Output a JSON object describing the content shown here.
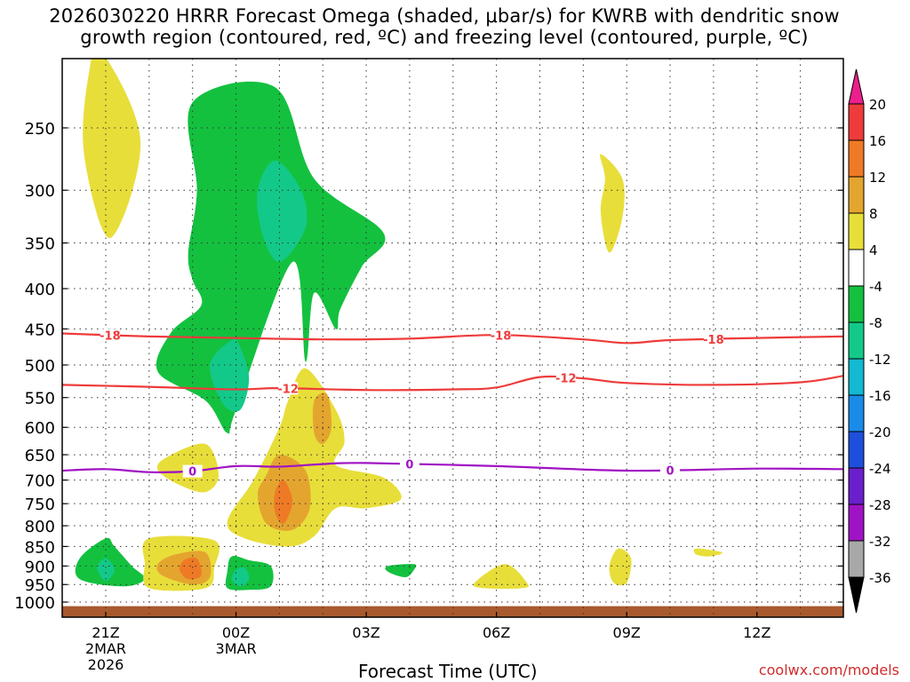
{
  "title_line1": "2026030220 HRRR Forecast Omega (shaded, μbar/s) for KWRB with dendritic snow",
  "title_line2": "growth region (contoured, red, ºC) and freezing level (contoured, purple, ºC)",
  "credit": "coolwx.com/models",
  "chart_data": {
    "type": "heatmap",
    "xlabel": "Forecast Time (UTC)",
    "ylabel": "",
    "x_ticks": [
      {
        "hour": 0,
        "lines": [
          "21Z",
          "2MAR",
          "2026"
        ]
      },
      {
        "hour": 3,
        "lines": [
          "00Z",
          "3MAR"
        ]
      },
      {
        "hour": 6,
        "lines": [
          "03Z"
        ]
      },
      {
        "hour": 9,
        "lines": [
          "06Z"
        ]
      },
      {
        "hour": 12,
        "lines": [
          "09Z"
        ]
      },
      {
        "hour": 15,
        "lines": [
          "12Z"
        ]
      }
    ],
    "xlim_hours": [
      -1,
      17
    ],
    "y_ticks_hpa": [
      250,
      300,
      350,
      400,
      450,
      500,
      550,
      600,
      650,
      700,
      750,
      800,
      850,
      900,
      950,
      1000
    ],
    "ylim_hpa": [
      200,
      1015
    ],
    "colorbar": {
      "labels": [
        "20",
        "16",
        "12",
        "8",
        "4",
        "-4",
        "-8",
        "-12",
        "-16",
        "-20",
        "-24",
        "-28",
        "-32",
        "-36"
      ],
      "colors": [
        "#ec1f8c",
        "#ee3b3b",
        "#ef7a25",
        "#e4a52f",
        "#e8de3a",
        "#ffffff",
        "#13c13f",
        "#13c989",
        "#13b8d2",
        "#1a8be8",
        "#1e4fdc",
        "#6b1fcc",
        "#a013c4",
        "#a8a8a8",
        "#000000"
      ]
    },
    "omega_regions": [
      {
        "value": 6,
        "color": "#e8de3a",
        "points": [
          [
            -0.1,
            200
          ],
          [
            0.8,
            260
          ],
          [
            0.1,
            345
          ],
          [
            -0.5,
            270
          ],
          [
            -0.4,
            215
          ]
        ]
      },
      {
        "value": -6,
        "color": "#13c13f",
        "points": [
          [
            2.0,
            232
          ],
          [
            3.9,
            222
          ],
          [
            4.8,
            290
          ],
          [
            6.4,
            340
          ],
          [
            5.9,
            375
          ],
          [
            5.4,
            425
          ],
          [
            5.3,
            450
          ],
          [
            4.8,
            405
          ],
          [
            4.6,
            495
          ],
          [
            4.3,
            370
          ],
          [
            3.0,
            570
          ],
          [
            2.8,
            610
          ],
          [
            2.3,
            555
          ],
          [
            1.2,
            510
          ],
          [
            1.5,
            455
          ],
          [
            2.2,
            420
          ],
          [
            2.0,
            390
          ],
          [
            1.9,
            360
          ],
          [
            2.1,
            300
          ]
        ]
      },
      {
        "value": -10,
        "color": "#13c989",
        "points": [
          [
            3.9,
            275
          ],
          [
            3.5,
            300
          ],
          [
            3.6,
            340
          ],
          [
            4.0,
            370
          ],
          [
            4.6,
            335
          ],
          [
            4.5,
            300
          ]
        ]
      },
      {
        "value": -10,
        "color": "#13c989",
        "points": [
          [
            2.9,
            465
          ],
          [
            2.4,
            500
          ],
          [
            2.7,
            560
          ],
          [
            3.1,
            570
          ],
          [
            3.3,
            520
          ],
          [
            3.1,
            475
          ]
        ]
      },
      {
        "value": 6,
        "color": "#e8de3a",
        "points": [
          [
            1.4,
            655
          ],
          [
            2.3,
            630
          ],
          [
            2.6,
            690
          ],
          [
            2.3,
            725
          ],
          [
            1.7,
            710
          ],
          [
            1.2,
            680
          ]
        ]
      },
      {
        "value": 6,
        "color": "#e8de3a",
        "points": [
          [
            4.6,
            505
          ],
          [
            5.3,
            570
          ],
          [
            5.5,
            625
          ],
          [
            5.3,
            670
          ],
          [
            6.4,
            695
          ],
          [
            6.8,
            740
          ],
          [
            6.0,
            760
          ],
          [
            5.3,
            760
          ],
          [
            4.8,
            825
          ],
          [
            4.2,
            850
          ],
          [
            3.2,
            830
          ],
          [
            2.8,
            790
          ],
          [
            3.4,
            700
          ],
          [
            4.0,
            600
          ],
          [
            4.2,
            555
          ]
        ]
      },
      {
        "value": 10,
        "color": "#e4a52f",
        "points": [
          [
            4.0,
            650
          ],
          [
            4.6,
            680
          ],
          [
            4.7,
            760
          ],
          [
            4.3,
            810
          ],
          [
            3.7,
            795
          ],
          [
            3.5,
            730
          ],
          [
            3.7,
            690
          ]
        ]
      },
      {
        "value": 10,
        "color": "#e4a52f",
        "points": [
          [
            4.8,
            555
          ],
          [
            5.1,
            545
          ],
          [
            5.2,
            600
          ],
          [
            5.0,
            630
          ],
          [
            4.8,
            610
          ]
        ]
      },
      {
        "value": 14,
        "color": "#ef7a25",
        "points": [
          [
            4.1,
            700
          ],
          [
            4.3,
            745
          ],
          [
            4.1,
            795
          ],
          [
            3.9,
            770
          ],
          [
            3.9,
            725
          ]
        ]
      },
      {
        "value": -6,
        "color": "#13c13f",
        "points": [
          [
            0.0,
            830
          ],
          [
            -0.6,
            880
          ],
          [
            -0.6,
            935
          ],
          [
            0.4,
            955
          ],
          [
            0.9,
            935
          ],
          [
            0.6,
            900
          ],
          [
            0.2,
            850
          ]
        ]
      },
      {
        "value": -10,
        "color": "#13c989",
        "points": [
          [
            0.0,
            880
          ],
          [
            -0.2,
            905
          ],
          [
            0.0,
            940
          ],
          [
            0.2,
            910
          ]
        ]
      },
      {
        "value": 6,
        "color": "#e8de3a",
        "points": [
          [
            1.0,
            830
          ],
          [
            2.5,
            835
          ],
          [
            2.5,
            905
          ],
          [
            2.3,
            960
          ],
          [
            1.0,
            960
          ],
          [
            0.9,
            895
          ]
        ]
      },
      {
        "value": 10,
        "color": "#e4a52f",
        "points": [
          [
            1.6,
            870
          ],
          [
            2.3,
            865
          ],
          [
            2.4,
            930
          ],
          [
            2.0,
            950
          ],
          [
            1.3,
            925
          ],
          [
            1.2,
            895
          ]
        ]
      },
      {
        "value": 14,
        "color": "#ef7a25",
        "points": [
          [
            1.8,
            885
          ],
          [
            2.1,
            880
          ],
          [
            2.2,
            925
          ],
          [
            1.9,
            935
          ],
          [
            1.7,
            910
          ]
        ]
      },
      {
        "value": -6,
        "color": "#13c13f",
        "points": [
          [
            2.9,
            875
          ],
          [
            3.3,
            885
          ],
          [
            3.8,
            900
          ],
          [
            3.8,
            955
          ],
          [
            3.3,
            965
          ],
          [
            2.8,
            960
          ],
          [
            2.8,
            915
          ]
        ]
      },
      {
        "value": -10,
        "color": "#13c989",
        "points": [
          [
            3.0,
            910
          ],
          [
            3.2,
            905
          ],
          [
            3.3,
            935
          ],
          [
            3.1,
            955
          ],
          [
            2.9,
            935
          ]
        ]
      },
      {
        "value": -6,
        "color": "#13c13f",
        "points": [
          [
            6.5,
            900
          ],
          [
            7.1,
            895
          ],
          [
            7.1,
            910
          ],
          [
            6.9,
            930
          ],
          [
            6.5,
            915
          ]
        ]
      },
      {
        "value": 6,
        "color": "#e8de3a",
        "points": [
          [
            8.5,
            945
          ],
          [
            9.2,
            895
          ],
          [
            9.7,
            945
          ],
          [
            9.6,
            960
          ],
          [
            8.7,
            960
          ]
        ]
      },
      {
        "value": 6,
        "color": "#e8de3a",
        "points": [
          [
            11.8,
            855
          ],
          [
            12.1,
            880
          ],
          [
            12.0,
            945
          ],
          [
            11.7,
            945
          ],
          [
            11.6,
            900
          ]
        ]
      },
      {
        "value": 6,
        "color": "#e8de3a",
        "points": [
          [
            11.4,
            270
          ],
          [
            11.9,
            290
          ],
          [
            11.9,
            325
          ],
          [
            11.6,
            360
          ],
          [
            11.4,
            320
          ],
          [
            11.5,
            290
          ]
        ]
      },
      {
        "value": 6,
        "color": "#e8de3a",
        "points": [
          [
            13.6,
            855
          ],
          [
            14.2,
            865
          ],
          [
            13.9,
            875
          ],
          [
            13.6,
            870
          ]
        ]
      }
    ],
    "isotherm_minus18": {
      "color": "#ee3b3b",
      "label": "-18",
      "points": [
        [
          -1,
          456
        ],
        [
          1,
          460
        ],
        [
          3,
          462
        ],
        [
          5,
          464
        ],
        [
          7,
          463
        ],
        [
          9,
          458
        ],
        [
          11,
          464
        ],
        [
          12,
          469
        ],
        [
          13,
          465
        ],
        [
          15,
          462
        ],
        [
          17,
          460
        ]
      ],
      "label_hours": [
        0.1,
        9.1,
        14.0
      ]
    },
    "isotherm_minus12": {
      "color": "#ee3b3b",
      "label": "-12",
      "points": [
        [
          -1,
          530
        ],
        [
          1,
          533
        ],
        [
          3,
          537
        ],
        [
          4,
          535
        ],
        [
          6,
          538
        ],
        [
          8,
          537
        ],
        [
          9,
          534
        ],
        [
          10,
          518
        ],
        [
          11,
          520
        ],
        [
          12,
          527
        ],
        [
          14,
          530
        ],
        [
          16,
          526
        ],
        [
          17,
          516
        ]
      ],
      "label_hours": [
        4.2,
        10.6
      ]
    },
    "freezing_level": {
      "color": "#a013c4",
      "label": "0",
      "points": [
        [
          -1,
          681
        ],
        [
          0,
          678
        ],
        [
          1,
          684
        ],
        [
          2,
          682
        ],
        [
          3,
          672
        ],
        [
          4,
          673
        ],
        [
          5,
          668
        ],
        [
          6,
          666
        ],
        [
          9,
          672
        ],
        [
          12,
          681
        ],
        [
          15,
          677
        ],
        [
          17,
          678
        ]
      ],
      "label_hours": [
        2.0,
        7.0,
        13.0
      ]
    },
    "ground": {
      "color": "#a85a2e",
      "top_hpa": 1012
    }
  }
}
